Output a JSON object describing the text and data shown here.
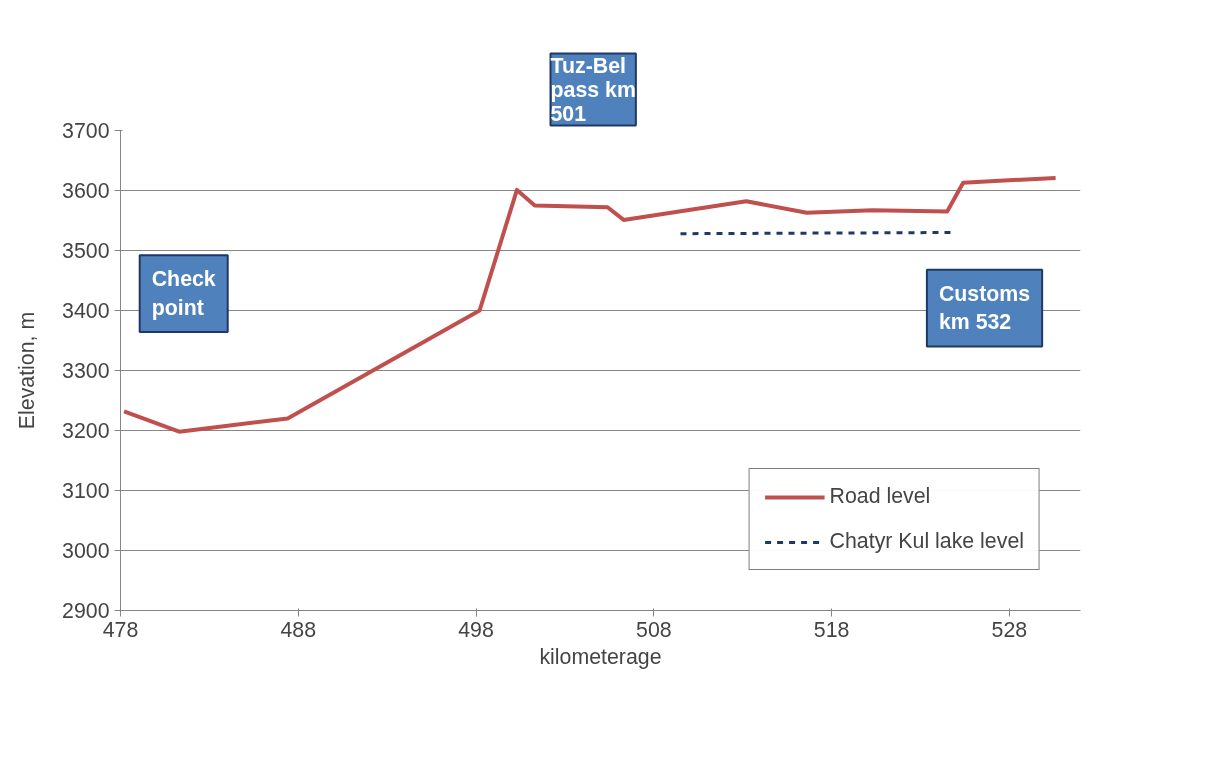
{
  "chart_data": {
    "type": "line",
    "xlabel": "kilometerage",
    "ylabel": "Elevation, m",
    "xlim": [
      478,
      532
    ],
    "xticks": [
      478,
      488,
      498,
      508,
      518,
      528
    ],
    "ylim": [
      2900,
      3700
    ],
    "yticks": [
      2900,
      3000,
      3100,
      3200,
      3300,
      3400,
      3500,
      3600,
      3700
    ],
    "grid": "y",
    "legend": "bottom right",
    "line_style": "solid",
    "marker": "none",
    "series": [
      {
        "name": "Road level",
        "color": "#c0504d",
        "x": [
          478.2,
          481.3,
          487.4,
          498.2,
          500.3,
          501.3,
          505.4,
          506.3,
          513.2,
          516.6,
          520.3,
          524.5,
          525.4,
          530.6
        ],
        "values": [
          3232,
          3198,
          3220,
          3400,
          3601,
          3575,
          3572,
          3551,
          3582,
          3563,
          3567,
          3565,
          3613,
          3621
        ]
      },
      {
        "name": "Chatyr Kul lake level",
        "color": "#1f3864",
        "line_style": "dashed",
        "x": [
          509.5,
          524.8
        ],
        "values": [
          3528,
          3530
        ]
      }
    ],
    "annotations": [
      "Check\npoint",
      "Tuz-Bel\npass km\n501",
      "Customs\nkm 532"
    ]
  }
}
